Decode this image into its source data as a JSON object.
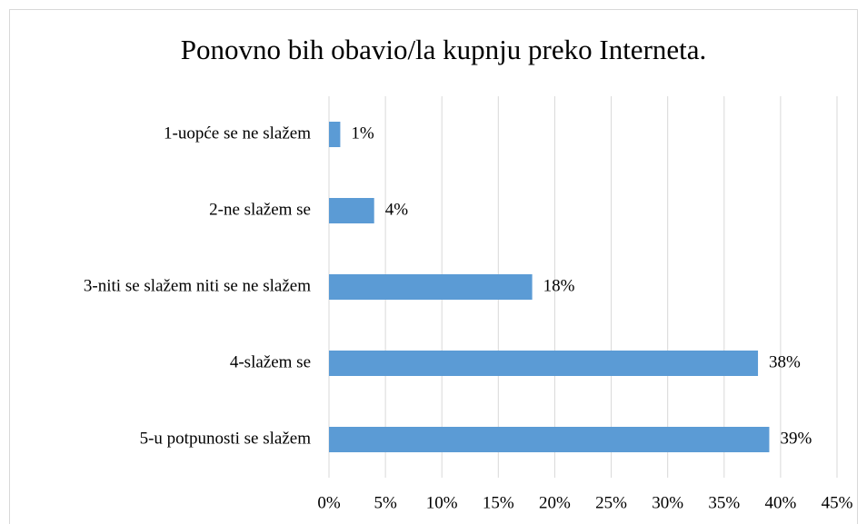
{
  "chart_data": {
    "type": "bar",
    "orientation": "horizontal",
    "title": "Ponovno bih obavio/la kupnju preko Interneta.",
    "categories": [
      "1-uopće se ne slažem",
      "2-ne slažem se",
      "3-niti se slažem niti se ne slažem",
      "4-slažem se",
      "5-u potpunosti se slažem"
    ],
    "values": [
      1,
      4,
      18,
      38,
      39
    ],
    "value_labels": [
      "1%",
      "4%",
      "18%",
      "38%",
      "39%"
    ],
    "color": "#5b9bd5",
    "xlim": [
      0,
      45
    ],
    "xticks": [
      {
        "value": 0,
        "label": "0%"
      },
      {
        "value": 5,
        "label": "5%"
      },
      {
        "value": 10,
        "label": "10%"
      },
      {
        "value": 15,
        "label": "15%"
      },
      {
        "value": 20,
        "label": "20%"
      },
      {
        "value": 25,
        "label": "25%"
      },
      {
        "value": 30,
        "label": "30%"
      },
      {
        "value": 35,
        "label": "35%"
      },
      {
        "value": 40,
        "label": "40%"
      },
      {
        "value": 45,
        "label": "45%"
      }
    ],
    "grid": true
  }
}
